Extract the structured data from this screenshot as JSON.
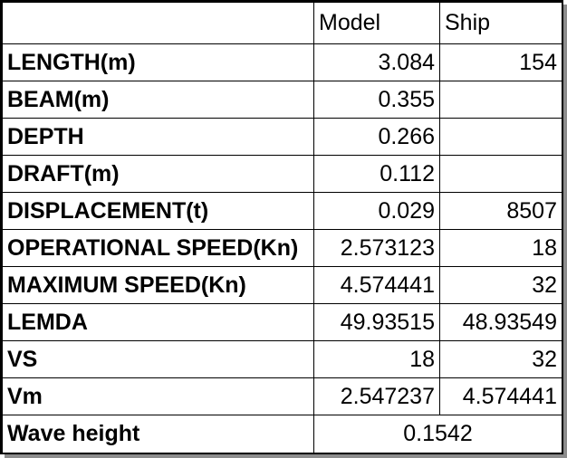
{
  "table": {
    "headers": [
      "",
      "Model",
      "Ship"
    ],
    "rows": [
      {
        "label": "LENGTH(m)",
        "model": "3.084",
        "ship": "154"
      },
      {
        "label": "BEAM(m)",
        "model": "0.355",
        "ship": ""
      },
      {
        "label": "DEPTH",
        "model": "0.266",
        "ship": ""
      },
      {
        "label": "DRAFT(m)",
        "model": "0.112",
        "ship": ""
      },
      {
        "label": "DISPLACEMENT(t)",
        "model": "0.029",
        "ship": "8507"
      },
      {
        "label": "OPERATIONAL SPEED(Kn)",
        "model": "2.573123",
        "ship": "18"
      },
      {
        "label": "MAXIMUM SPEED(Kn)",
        "model": "4.574441",
        "ship": "32"
      },
      {
        "label": "LEMDA",
        "model": "49.93515",
        "ship": "48.93549"
      },
      {
        "label": "VS",
        "model": "18",
        "ship": "32"
      },
      {
        "label": "Vm",
        "model": "2.547237",
        "ship": "4.574441"
      }
    ],
    "footer": {
      "label": "Wave height",
      "value": "0.1542"
    }
  },
  "colors": {
    "border": "#000000",
    "shadow": "#8c8c8c",
    "background": "#ffffff"
  }
}
